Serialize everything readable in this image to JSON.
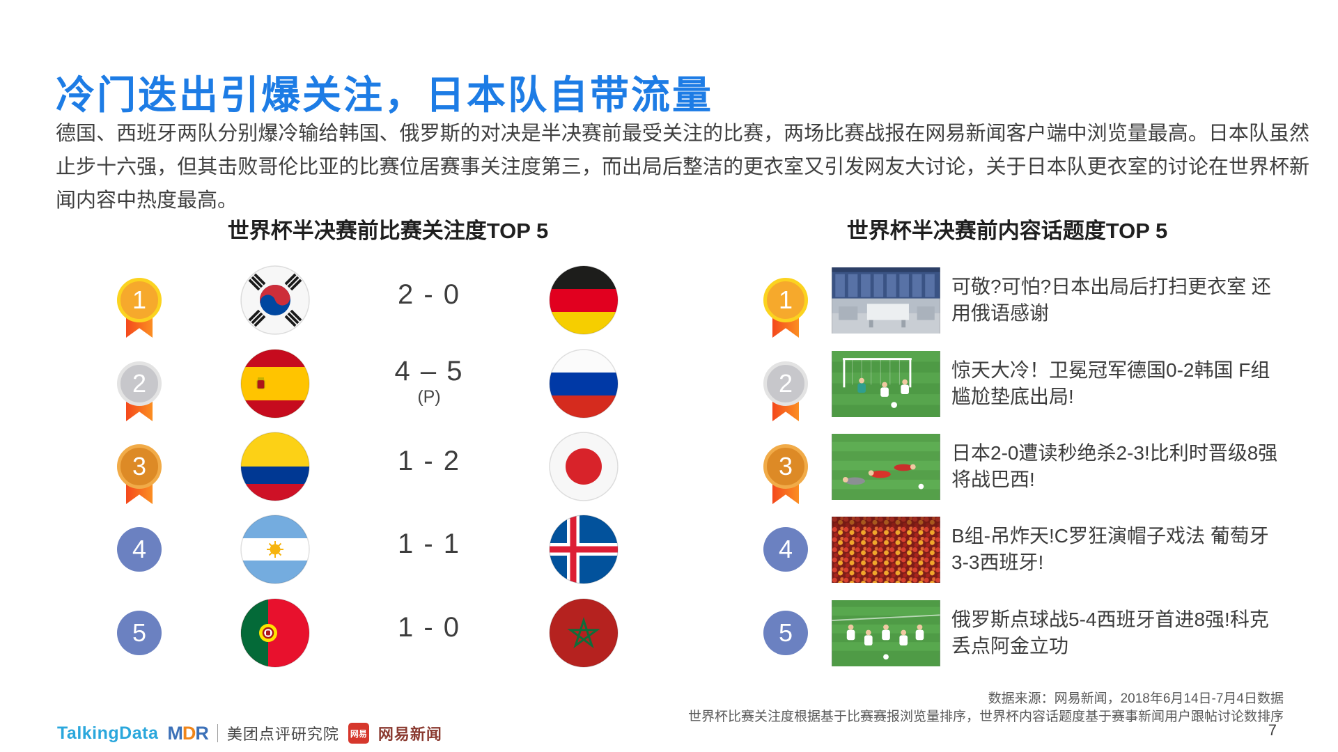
{
  "slide": {
    "title": "冷门迭出引爆关注，日本队自带流量",
    "intro": "德国、西班牙两队分别爆冷输给韩国、俄罗斯的对决是半决赛前最受关注的比赛，两场比赛战报在网易新闻客户端中浏览量最高。日本队虽然止步十六强，但其击败哥伦比亚的比赛位居赛事关注度第三，而出局后整洁的更衣室又引发网友大讨论，关于日本队更衣室的讨论在世界杯新闻内容中热度最高。",
    "page_number": "7"
  },
  "left_panel": {
    "header": "世界杯半决赛前比赛关注度TOP 5",
    "rows": [
      {
        "rank": "1",
        "medal": "gold",
        "home_flag": "south-korea",
        "score": "2 - 0",
        "score_note": "",
        "away_flag": "germany"
      },
      {
        "rank": "2",
        "medal": "silver",
        "home_flag": "spain",
        "score": "4 – 5",
        "score_note": "(P)",
        "away_flag": "russia"
      },
      {
        "rank": "3",
        "medal": "bronze",
        "home_flag": "colombia",
        "score": "1 - 2",
        "score_note": "",
        "away_flag": "japan"
      },
      {
        "rank": "4",
        "medal": "plain",
        "home_flag": "argentina",
        "score": "1 - 1",
        "score_note": "",
        "away_flag": "iceland"
      },
      {
        "rank": "5",
        "medal": "plain",
        "home_flag": "portugal",
        "score": "1 - 0",
        "score_note": "",
        "away_flag": "morocco"
      }
    ]
  },
  "right_panel": {
    "header": "世界杯半决赛前内容话题度TOP 5",
    "rows": [
      {
        "rank": "1",
        "medal": "gold",
        "photo": "locker-room",
        "headline": "可敬?可怕?日本出局后打扫更衣室 还用俄语感谢"
      },
      {
        "rank": "2",
        "medal": "silver",
        "photo": "germany-korea-goal",
        "headline": "惊天大冷！卫冕冠军德国0-2韩国 F组尴尬垫底出局!"
      },
      {
        "rank": "3",
        "medal": "bronze",
        "photo": "belgium-japan-pitch",
        "headline": "日本2-0遭读秒绝杀2-3!比利时晋级8强将战巴西!"
      },
      {
        "rank": "4",
        "medal": "plain",
        "photo": "fans-crowd",
        "headline": "B组-吊炸天!C罗狂演帽子戏法 葡萄牙3-3西班牙!"
      },
      {
        "rank": "5",
        "medal": "plain",
        "photo": "russia-spain-pitch",
        "headline": "俄罗斯点球战5-4西班牙首进8强!科克丢点阿金立功"
      }
    ]
  },
  "footer": {
    "source_line1": "数据来源：网易新闻，2018年6月14日-7月4日数据",
    "source_line2": "世界杯比赛关注度根据基于比赛赛报浏览量排序，世界杯内容话题度基于赛事新闻用户跟帖讨论数排序",
    "logos": {
      "talkingdata": "TalkingData",
      "mdr_m": "M",
      "mdr_d": "D",
      "mdr_r": "R",
      "meituan": "美团点评研究院",
      "netease_badge": "网易",
      "netease": "网易新闻"
    }
  },
  "colors": {
    "title_blue": "#1d7ce5",
    "medal_gold": "#f6a92c",
    "medal_gold_ring": "#fbd320",
    "medal_silver": "#c7c7cb",
    "medal_silver_ring": "#e3e3e3",
    "medal_bronze": "#dd8a26",
    "medal_bronze_ring": "#f1ab48",
    "medal_plain_blue": "#6b81c1",
    "ribbon_orange": "#f4601d"
  }
}
